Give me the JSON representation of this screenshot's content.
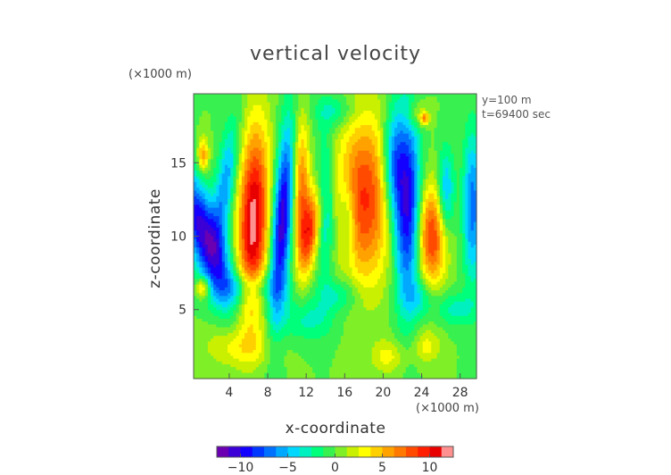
{
  "chart_data": {
    "type": "heatmap",
    "title": "vertical velocity",
    "xlabel": "x-coordinate",
    "ylabel": "z-coordinate",
    "x_unit": "(×1000 m)",
    "y_unit": "(×1000 m)",
    "annotations": [
      "y=100 m",
      "t=69400 sec"
    ],
    "xlim": [
      0.3,
      29.7
    ],
    "ylim": [
      0.3,
      19.7
    ],
    "xticks": [
      4,
      8,
      12,
      16,
      20,
      24,
      28
    ],
    "yticks": [
      5,
      10,
      15
    ],
    "colorbar": {
      "ticks": [
        -10,
        -5,
        0,
        5,
        10
      ],
      "range": [
        -12.5,
        12.5
      ],
      "colors": [
        "#6b00b3",
        "#3a00d6",
        "#1400ff",
        "#0038ff",
        "#0070ff",
        "#00a8ff",
        "#00d8ff",
        "#00f0c0",
        "#00ff7a",
        "#38f050",
        "#7ff028",
        "#c8f000",
        "#ffff00",
        "#ffd000",
        "#ffa200",
        "#ff7800",
        "#ff4a00",
        "#ff1e00",
        "#e80000",
        "#ff9090"
      ]
    },
    "features": [
      {
        "x": 1.5,
        "z": 10.0,
        "value": -11,
        "sx": 1.2,
        "sz": 3.5,
        "theta": -0.5
      },
      {
        "x": 6.5,
        "z": 11.0,
        "value": 12,
        "sx": 1.1,
        "sz": 4.5,
        "theta": 0.05
      },
      {
        "x": 3.6,
        "z": 13.5,
        "value": -6,
        "sx": 0.7,
        "sz": 3.0,
        "theta": 0.2
      },
      {
        "x": 9.5,
        "z": 11.0,
        "value": -11,
        "sx": 0.7,
        "sz": 4.5,
        "theta": 0.1
      },
      {
        "x": 11.5,
        "z": 13.0,
        "value": 7,
        "sx": 0.6,
        "sz": 3.5,
        "theta": 0.0
      },
      {
        "x": 12.5,
        "z": 10.5,
        "value": 8,
        "sx": 0.7,
        "sz": 2.0,
        "theta": 0.2
      },
      {
        "x": 14.0,
        "z": 12.0,
        "value": -5,
        "sx": 0.7,
        "sz": 3.5,
        "theta": 0.0
      },
      {
        "x": 18.0,
        "z": 12.5,
        "value": 9,
        "sx": 2.0,
        "sz": 4.0,
        "theta": 0.0
      },
      {
        "x": 16.3,
        "z": 11.0,
        "value": -4,
        "sx": 0.6,
        "sz": 2.0,
        "theta": 0.0
      },
      {
        "x": 22.5,
        "z": 12.0,
        "value": -11,
        "sx": 1.0,
        "sz": 4.5,
        "theta": 0.0
      },
      {
        "x": 21.0,
        "z": 15.0,
        "value": -6,
        "sx": 0.8,
        "sz": 2.5,
        "theta": 0.0
      },
      {
        "x": 25.0,
        "z": 10.0,
        "value": 9,
        "sx": 1.1,
        "sz": 2.5,
        "theta": 0.0
      },
      {
        "x": 26.5,
        "z": 13.0,
        "value": -6,
        "sx": 0.6,
        "sz": 2.0,
        "theta": 0.0
      },
      {
        "x": 29.3,
        "z": 12.0,
        "value": -7,
        "sx": 0.7,
        "sz": 3.5,
        "theta": 0.0
      },
      {
        "x": 1.3,
        "z": 15.5,
        "value": 6,
        "sx": 0.4,
        "sz": 0.8,
        "theta": 0.0
      },
      {
        "x": 1.3,
        "z": 6.5,
        "value": 6,
        "sx": 0.5,
        "sz": 0.5,
        "theta": 0.0
      },
      {
        "x": 6.0,
        "z": 6.5,
        "value": -4,
        "sx": 2.5,
        "sz": 0.8,
        "theta": 0.0
      },
      {
        "x": 15.5,
        "z": 6.0,
        "value": -3,
        "sx": 1.5,
        "sz": 0.8,
        "theta": 0.0
      },
      {
        "x": 24.0,
        "z": 5.8,
        "value": -3,
        "sx": 1.2,
        "sz": 0.9,
        "theta": 0.0
      },
      {
        "x": 12.0,
        "z": 4.3,
        "value": -3,
        "sx": 2.0,
        "sz": 1.0,
        "theta": 0.0
      },
      {
        "x": 27.5,
        "z": 5.0,
        "value": -3,
        "sx": 1.5,
        "sz": 0.8,
        "theta": 0.0
      },
      {
        "x": 5.0,
        "z": 2.5,
        "value": 3,
        "sx": 2.5,
        "sz": 1.0,
        "theta": 0.0
      },
      {
        "x": 24.5,
        "z": 2.5,
        "value": 3,
        "sx": 1.0,
        "sz": 0.8,
        "theta": 0.0
      },
      {
        "x": 20.5,
        "z": 1.8,
        "value": 3,
        "sx": 1.2,
        "sz": 0.8,
        "theta": 0.0
      },
      {
        "x": 15.0,
        "z": 18.5,
        "value": -3,
        "sx": 1.5,
        "sz": 0.8,
        "theta": 0.0
      },
      {
        "x": 23.5,
        "z": 18.3,
        "value": 3,
        "sx": 0.8,
        "sz": 0.7,
        "theta": 0.0
      },
      {
        "x": 24.3,
        "z": 18.0,
        "value": 6,
        "sx": 0.3,
        "sz": 0.3,
        "theta": 0.0
      }
    ]
  }
}
